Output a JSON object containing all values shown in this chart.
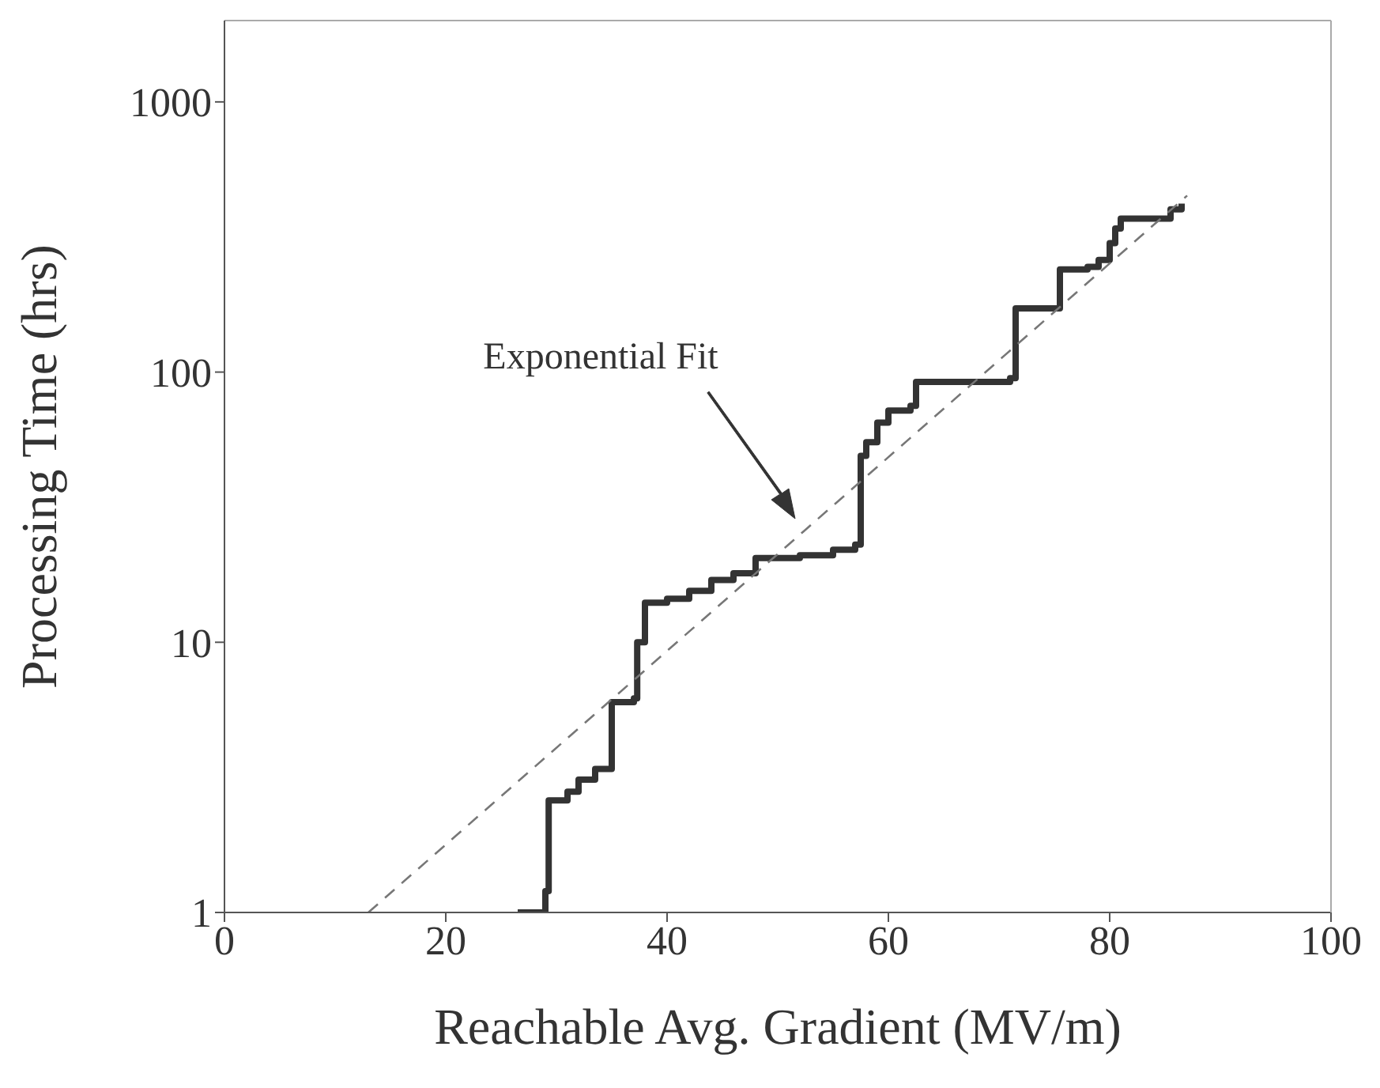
{
  "chart_data": {
    "type": "step",
    "xlabel": "Reachable Avg. Gradient (MV/m)",
    "ylabel": "Processing Time (hrs)",
    "xlim": [
      0,
      100
    ],
    "xticks": [
      0,
      20,
      40,
      60,
      80,
      100
    ],
    "ylim": [
      1,
      2000
    ],
    "yticks": [
      1,
      10,
      100,
      1000
    ],
    "log": true,
    "marker": "none",
    "series": [
      {
        "type": "step",
        "color": "#333333",
        "line_style": "solid",
        "x": [
          26.5,
          29,
          29.3,
          31,
          32,
          33.5,
          35,
          37,
          37.3,
          38,
          40,
          42,
          44,
          46,
          48,
          52,
          55,
          57,
          57.5,
          58,
          59,
          60,
          62,
          62.5,
          67,
          71,
          71.5,
          75,
          75.5,
          78,
          79,
          80,
          80.5,
          81,
          85,
          85.5,
          86.5
        ],
        "values": [
          1,
          1.2,
          2.6,
          2.8,
          3.1,
          3.4,
          6,
          6.2,
          10,
          14,
          14.5,
          15.5,
          17,
          18,
          20.5,
          21,
          22,
          23,
          49,
          55,
          65,
          72,
          75,
          92,
          92,
          95,
          172,
          172,
          240,
          245,
          260,
          300,
          340,
          370,
          370,
          400,
          420
        ]
      },
      {
        "type": "line",
        "color": "#777777",
        "line_style": "dashed",
        "x": [
          13,
          87
        ],
        "values": [
          1,
          450
        ]
      }
    ],
    "annotations": [
      "Exponential Fit"
    ]
  }
}
